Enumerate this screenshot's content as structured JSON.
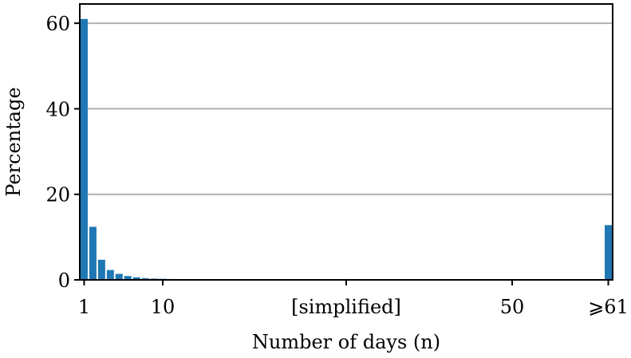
{
  "chart_data": {
    "type": "bar",
    "xlabel": "Number of days (n)",
    "ylabel": "Percentage",
    "ylim": [
      0,
      64.5
    ],
    "xlim": [
      0.5,
      61.5
    ],
    "grid": "horizontal",
    "bar_color": "#1f77b4",
    "grid_color": "#b0b0b0",
    "x": [
      1,
      2,
      3,
      4,
      5,
      6,
      7,
      8,
      9,
      10,
      11,
      12,
      13,
      14,
      15,
      16,
      17,
      18,
      19,
      20,
      61
    ],
    "values": [
      61.0,
      12.4,
      4.7,
      2.3,
      1.4,
      0.9,
      0.6,
      0.4,
      0.3,
      0.25,
      0.2,
      0.15,
      0.12,
      0.1,
      0.08,
      0.06,
      0.05,
      0.04,
      0.03,
      0.02,
      12.8
    ],
    "yticks": [
      {
        "value": 0,
        "label": "0"
      },
      {
        "value": 20,
        "label": "20"
      },
      {
        "value": 40,
        "label": "40"
      },
      {
        "value": 60,
        "label": "60"
      }
    ],
    "xticks": [
      {
        "value": 1,
        "label": "1"
      },
      {
        "value": 10,
        "label": "10"
      },
      {
        "value": 31,
        "label": "[simplified]"
      },
      {
        "value": 50,
        "label": "50"
      },
      {
        "value": 61,
        "label": "⩾61"
      }
    ]
  }
}
